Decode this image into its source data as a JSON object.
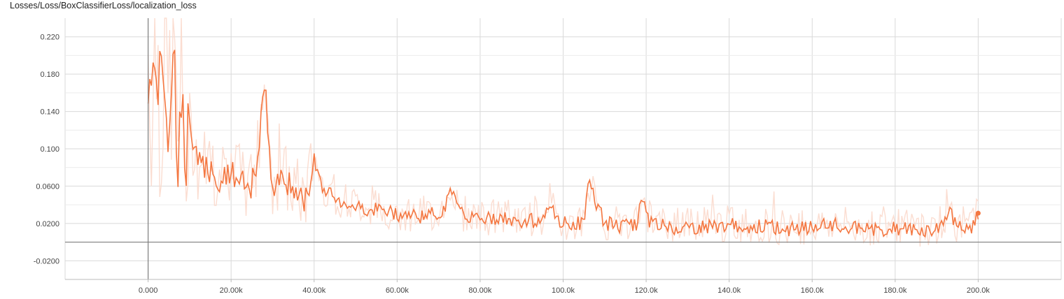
{
  "chart_data": {
    "type": "line",
    "title": "Losses/Loss/BoxClassifierLoss/localization_loss",
    "xlabel": "",
    "ylabel": "",
    "xlim": [
      -20000,
      220000
    ],
    "ylim": [
      -0.04,
      0.24
    ],
    "grid": true,
    "x_ticks": [
      0,
      20000,
      40000,
      60000,
      80000,
      100000,
      120000,
      140000,
      160000,
      180000,
      200000
    ],
    "x_tick_labels": [
      "0.000",
      "20.00k",
      "40.00k",
      "60.00k",
      "80.00k",
      "100.0k",
      "120.0k",
      "140.0k",
      "160.0k",
      "180.0k",
      "200.0k"
    ],
    "y_ticks": [
      -0.02,
      0.02,
      0.06,
      0.1,
      0.14,
      0.18,
      0.22
    ],
    "y_tick_labels": [
      "-0.0200",
      "0.0200",
      "0.0600",
      "0.100",
      "0.140",
      "0.180",
      "0.220"
    ],
    "colors": {
      "smoothed": "#f47741",
      "raw": "#fbd9cc",
      "grid": "#d9d9d9",
      "zero_line": "#7f7f7f"
    },
    "series": [
      {
        "x": [
          0,
          1000,
          2000,
          3000,
          4000,
          5000,
          6000,
          7000,
          8000,
          9000,
          10000,
          12000,
          14000,
          16000,
          18000,
          20000,
          22000,
          24000,
          26000,
          28000,
          30000,
          32000,
          34000,
          36000,
          38000,
          40000,
          42000,
          45000,
          48000,
          50000,
          55000,
          60000,
          65000,
          70000,
          72000,
          73000,
          75000,
          80000,
          85000,
          90000,
          95000,
          97000,
          98000,
          100000,
          105000,
          106000,
          110000,
          115000,
          118000,
          119000,
          120000,
          125000,
          130000,
          135000,
          140000,
          145000,
          150000,
          155000,
          160000,
          165000,
          170000,
          175000,
          180000,
          185000,
          190000,
          192000,
          193000,
          195000,
          198000,
          200000
        ],
        "values": [
          0.19,
          0.15,
          0.21,
          0.14,
          0.19,
          0.12,
          0.23,
          0.1,
          0.14,
          0.095,
          0.12,
          0.08,
          0.085,
          0.07,
          0.065,
          0.075,
          0.065,
          0.055,
          0.07,
          0.173,
          0.06,
          0.07,
          0.06,
          0.05,
          0.045,
          0.09,
          0.06,
          0.045,
          0.042,
          0.038,
          0.035,
          0.03,
          0.028,
          0.03,
          0.042,
          0.061,
          0.03,
          0.025,
          0.025,
          0.022,
          0.024,
          0.045,
          0.022,
          0.02,
          0.02,
          0.065,
          0.02,
          0.017,
          0.02,
          0.058,
          0.025,
          0.016,
          0.016,
          0.016,
          0.018,
          0.017,
          0.016,
          0.014,
          0.016,
          0.018,
          0.015,
          0.013,
          0.015,
          0.013,
          0.013,
          0.025,
          0.035,
          0.015,
          0.012,
          0.031
        ]
      }
    ]
  }
}
